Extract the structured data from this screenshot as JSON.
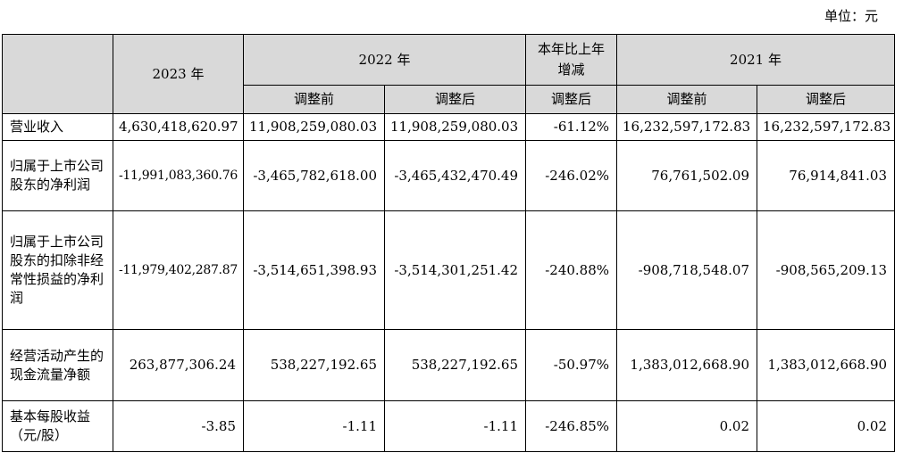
{
  "unit": "单位：元",
  "headers": {
    "y2023": "2023 年",
    "y2022": "2022 年",
    "yoy": "本年比上年增减",
    "y2021": "2021 年",
    "before": "调整前",
    "after": "调整后"
  },
  "rows": [
    {
      "label": "营业收入",
      "values": [
        "4,630,418,620.97",
        "11,908,259,080.03",
        "11,908,259,080.03",
        "-61.12%",
        "16,232,597,172.83",
        "16,232,597,172.83"
      ]
    },
    {
      "label": "归属于上市公司股东的净利润",
      "values": [
        "-11,991,083,360.76",
        "-3,465,782,618.00",
        "-3,465,432,470.49",
        "-246.02%",
        "76,761,502.09",
        "76,914,841.03"
      ]
    },
    {
      "label": "归属于上市公司股东的扣除非经常性损益的净利润",
      "values": [
        "-11,979,402,287.87",
        "-3,514,651,398.93",
        "-3,514,301,251.42",
        "-240.88%",
        "-908,718,548.07",
        "-908,565,209.13"
      ]
    },
    {
      "label": "经营活动产生的现金流量净额",
      "values": [
        "263,877,306.24",
        "538,227,192.65",
        "538,227,192.65",
        "-50.97%",
        "1,383,012,668.90",
        "1,383,012,668.90"
      ]
    },
    {
      "label": "基本每股收益（元/股）",
      "values": [
        "-3.85",
        "-1.11",
        "-1.11",
        "-246.85%",
        "0.02",
        "0.02"
      ]
    }
  ]
}
